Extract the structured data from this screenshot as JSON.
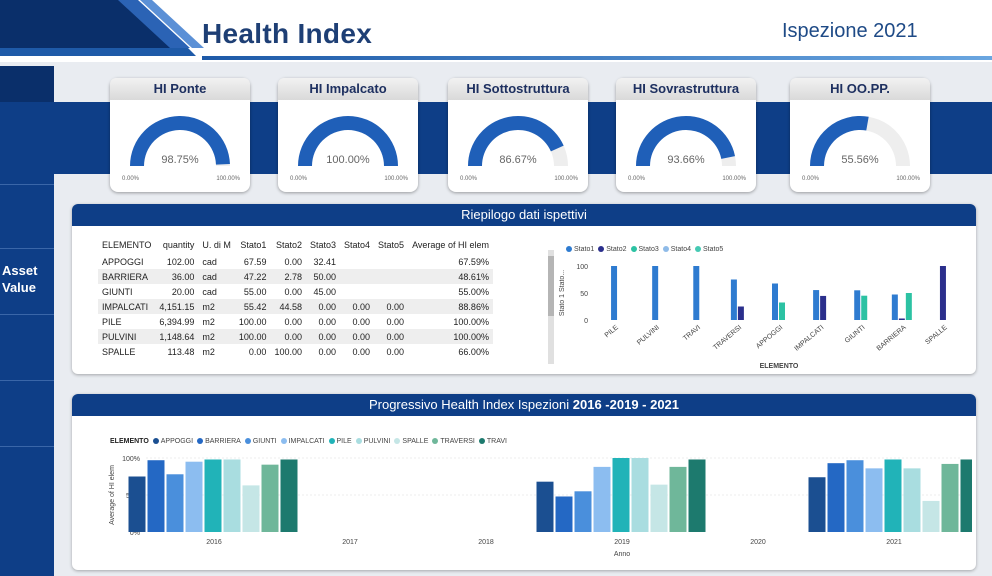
{
  "header": {
    "title": "Health Index",
    "subtitle": "Ispezione 2021"
  },
  "sidebar": {
    "asset_label_1": "Asset",
    "asset_label_2": "Value"
  },
  "colors": {
    "navy": "#0e3e87",
    "gauge_fill": "#1f5fb8",
    "gauge_track": "#eeeeee"
  },
  "kpis": [
    {
      "label": "HI Ponte",
      "value": "98.75%",
      "pct": 98.75,
      "min": "0.00%",
      "max": "100.00%"
    },
    {
      "label": "HI Impalcato",
      "value": "100.00%",
      "pct": 100,
      "min": "0.00%",
      "max": "100.00%"
    },
    {
      "label": "HI Sottostruttura",
      "value": "86.67%",
      "pct": 86.67,
      "min": "0.00%",
      "max": "100.00%"
    },
    {
      "label": "HI Sovrastruttura",
      "value": "93.66%",
      "pct": 93.66,
      "min": "0.00%",
      "max": "100.00%"
    },
    {
      "label": "HI OO.PP.",
      "value": "55.56%",
      "pct": 55.56,
      "min": "0.00%",
      "max": "100.00%"
    }
  ],
  "summary": {
    "title": "Riepilogo dati ispettivi",
    "columns": [
      "ELEMENTO",
      "quantity",
      "U. di M",
      "Stato1",
      "Stato2",
      "Stato3",
      "Stato4",
      "Stato5",
      "Average of HI elem"
    ],
    "rows": [
      [
        "APPOGGI",
        "102.00",
        "cad",
        "67.59",
        "0.00",
        "32.41",
        "",
        "",
        "67.59%"
      ],
      [
        "BARRIERA",
        "36.00",
        "cad",
        "47.22",
        "2.78",
        "50.00",
        "",
        "",
        "48.61%"
      ],
      [
        "GIUNTI",
        "20.00",
        "cad",
        "55.00",
        "0.00",
        "45.00",
        "",
        "",
        "55.00%"
      ],
      [
        "IMPALCATI",
        "4,151.15",
        "m2",
        "55.42",
        "44.58",
        "0.00",
        "0.00",
        "0.00",
        "88.86%"
      ],
      [
        "PILE",
        "6,394.99",
        "m2",
        "100.00",
        "0.00",
        "0.00",
        "0.00",
        "0.00",
        "100.00%"
      ],
      [
        "PULVINI",
        "1,148.64",
        "m2",
        "100.00",
        "0.00",
        "0.00",
        "0.00",
        "0.00",
        "100.00%"
      ],
      [
        "SPALLE",
        "113.48",
        "m2",
        "0.00",
        "100.00",
        "0.00",
        "0.00",
        "0.00",
        "66.00%"
      ]
    ]
  },
  "chart_data": [
    {
      "type": "bar",
      "ylabel": "Stato 1 Stato...",
      "xlabel": "ELEMENTO",
      "ylim": [
        0,
        100
      ],
      "yticks": [
        "0",
        "50",
        "100"
      ],
      "categories": [
        "PILE",
        "PULVINI",
        "TRAVI",
        "TRAVERSI",
        "APPOGGI",
        "IMPALCATI",
        "GIUNTI",
        "BARRIERA",
        "SPALLE"
      ],
      "series": [
        {
          "name": "Stato1",
          "color": "#2e7bd0",
          "values": [
            100,
            100,
            100,
            75,
            67.59,
            55.42,
            55,
            47.22,
            0
          ]
        },
        {
          "name": "Stato2",
          "color": "#2b2f8c",
          "values": [
            0,
            0,
            0,
            25,
            0,
            44.58,
            0,
            2.78,
            100
          ]
        },
        {
          "name": "Stato3",
          "color": "#2cc2a3",
          "values": [
            0,
            0,
            0,
            0,
            32.41,
            0,
            45,
            50,
            0
          ]
        },
        {
          "name": "Stato4",
          "color": "#8fbbe8",
          "values": [
            0,
            0,
            0,
            0,
            0,
            0,
            0,
            0,
            0
          ]
        },
        {
          "name": "Stato5",
          "color": "#45c9b3",
          "values": [
            0,
            0,
            0,
            0,
            0,
            0,
            0,
            0,
            0
          ]
        }
      ]
    },
    {
      "type": "bar",
      "title_prefix": "Progressivo Health Index Ispezioni",
      "title_years": "2016 -2019 - 2021",
      "legend_title": "ELEMENTO",
      "ylabel": "Average of HI elem",
      "xlabel": "Anno",
      "ylim": [
        0,
        100
      ],
      "yticks": [
        "0%",
        "50%",
        "100%"
      ],
      "categories": [
        "2016",
        "2017",
        "2018",
        "2019",
        "2020",
        "2021"
      ],
      "series": [
        {
          "name": "APPOGGI",
          "color": "#1b4f91",
          "values": [
            75,
            null,
            null,
            68,
            null,
            74
          ]
        },
        {
          "name": "BARRIERA",
          "color": "#2468c4",
          "values": [
            97,
            null,
            null,
            48,
            null,
            93
          ]
        },
        {
          "name": "GIUNTI",
          "color": "#4a8fdc",
          "values": [
            78,
            null,
            null,
            55,
            null,
            97
          ]
        },
        {
          "name": "IMPALCATI",
          "color": "#8cbdf0",
          "values": [
            95,
            null,
            null,
            88,
            null,
            86
          ]
        },
        {
          "name": "PILE",
          "color": "#21b3b8",
          "values": [
            98,
            null,
            null,
            100,
            null,
            98
          ]
        },
        {
          "name": "PULVINI",
          "color": "#a9dde0",
          "values": [
            98,
            null,
            null,
            100,
            null,
            86
          ]
        },
        {
          "name": "SPALLE",
          "color": "#c5e6e6",
          "values": [
            63,
            null,
            null,
            64,
            null,
            42
          ]
        },
        {
          "name": "TRAVERSI",
          "color": "#6fb79a",
          "values": [
            91,
            null,
            null,
            88,
            null,
            92
          ]
        },
        {
          "name": "TRAVI",
          "color": "#1d7a6e",
          "values": [
            98,
            null,
            null,
            98,
            null,
            98
          ]
        }
      ]
    }
  ]
}
